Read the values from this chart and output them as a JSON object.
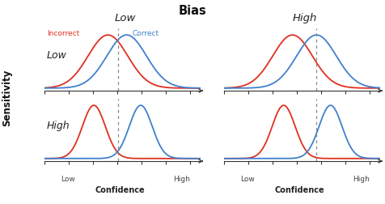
{
  "title": "Bias",
  "col_labels": [
    "Low",
    "High"
  ],
  "row_labels": [
    "Low",
    "High"
  ],
  "sensitivity_label": "Sensitivity",
  "confidence_label": "Confidence",
  "low_label": "Low",
  "high_label": "High",
  "incorrect_label": "Incorrect",
  "correct_label": "Correct",
  "red_color": "#e03020",
  "blue_color": "#4080cc",
  "bg_color": "#ffffff",
  "axis_color": "#333333",
  "dashed_color": "#888888",
  "panels": [
    {
      "row": 0,
      "col": 0,
      "mu_red": -0.18,
      "mu_blue": 0.18,
      "sigma_red": 0.38,
      "sigma_blue": 0.38,
      "threshold": 0.02
    },
    {
      "row": 0,
      "col": 1,
      "mu_red": -0.08,
      "mu_blue": 0.38,
      "sigma_red": 0.38,
      "sigma_blue": 0.38,
      "threshold": 0.38
    },
    {
      "row": 1,
      "col": 0,
      "mu_red": -0.45,
      "mu_blue": 0.45,
      "sigma_red": 0.22,
      "sigma_blue": 0.22,
      "threshold": 0.02
    },
    {
      "row": 1,
      "col": 1,
      "mu_red": -0.25,
      "mu_blue": 0.65,
      "sigma_red": 0.22,
      "sigma_blue": 0.22,
      "threshold": 0.38
    }
  ],
  "xlim": [
    -1.4,
    1.6
  ],
  "n_ticks": 7
}
